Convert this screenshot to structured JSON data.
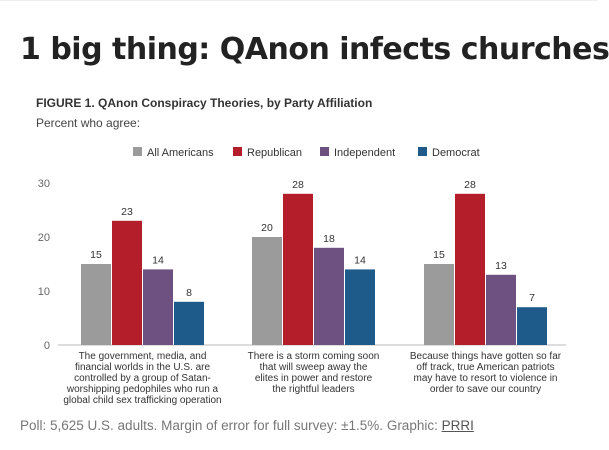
{
  "headline": "1 big thing: QAnon infects churches",
  "figure": {
    "title": "FIGURE 1. QAnon Conspiracy Theories, by Party Affiliation",
    "subtitle": "Percent who agree:"
  },
  "source": {
    "text": "Poll: 5,625 U.S. adults. Margin of error for full survey: ±1.5%. Graphic: ",
    "link": "PRRI"
  },
  "chart_data": {
    "type": "bar",
    "categories": [
      [
        "The government, media, and",
        "financial worlds in the U.S. are",
        "controlled by a group of Satan-",
        "worshipping pedophiles who run a",
        "global child sex trafficking operation"
      ],
      [
        "There is a storm coming soon",
        "that will sweep away the",
        "elites in power and restore",
        "the rightful leaders"
      ],
      [
        "Because things have gotten so far",
        "off track, true American patriots",
        "may have to resort to violence in",
        "order to save our country"
      ]
    ],
    "series": [
      {
        "name": "All Americans",
        "color": "#9b9b9b",
        "values": [
          15,
          20,
          15
        ]
      },
      {
        "name": "Republican",
        "color": "#b41e2b",
        "values": [
          23,
          28,
          28
        ]
      },
      {
        "name": "Independent",
        "color": "#6e5180",
        "values": [
          14,
          18,
          13
        ]
      },
      {
        "name": "Democrat",
        "color": "#1f5b8a",
        "values": [
          8,
          14,
          7
        ]
      }
    ],
    "yticks": [
      0,
      10,
      20,
      30
    ],
    "ylim": [
      0,
      30
    ],
    "legend": "top",
    "grid": false
  }
}
